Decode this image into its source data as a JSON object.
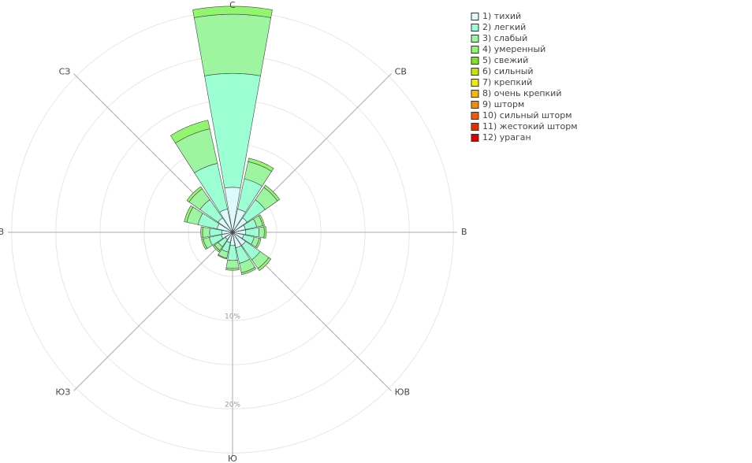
{
  "chart_data": {
    "type": "barpolar",
    "categories": [
      "С",
      null,
      "СВ",
      null,
      "В",
      null,
      "ЮВ",
      null,
      "Ю",
      null,
      "ЮЗ",
      null,
      "З",
      null,
      "СЗ",
      null
    ],
    "rlim": [
      0,
      25.6
    ],
    "rticks": [
      {
        "value": 5,
        "label": null
      },
      {
        "value": 10,
        "label": "10%"
      },
      {
        "value": 15,
        "label": null
      },
      {
        "value": 20,
        "label": "20%"
      },
      {
        "value": 25,
        "label": null
      }
    ],
    "grid": true,
    "legend": "top-right",
    "series": [
      {
        "name": "1) тихий",
        "color": "#dcfafa",
        "values": [
          5.1,
          2.7,
          2.0,
          1.5,
          1.5,
          1.3,
          1.8,
          1.8,
          1.5,
          1.2,
          1.0,
          1.3,
          1.2,
          1.8,
          2.0,
          2.7
        ]
      },
      {
        "name": "2) легкий",
        "color": "#9cffd4",
        "values": [
          12.9,
          3.5,
          2.5,
          1.3,
          1.5,
          1.2,
          2.0,
          1.8,
          1.7,
          1.1,
          1.0,
          1.4,
          1.4,
          2.2,
          2.5,
          5.3
        ]
      },
      {
        "name": "3) слабый",
        "color": "#9ef5a0",
        "values": [
          6.7,
          2.0,
          1.7,
          0.7,
          0.6,
          0.6,
          1.2,
          1.1,
          0.9,
          0.7,
          0.5,
          0.7,
          0.8,
          1.3,
          1.5,
          4.0
        ]
      },
      {
        "name": "4) умеренный",
        "color": "#92f56e",
        "values": [
          0.9,
          0.4,
          0.3,
          0.2,
          0.2,
          0.2,
          0.3,
          0.2,
          0.2,
          0.1,
          0.2,
          0.2,
          0.2,
          0.3,
          0.3,
          1.0
        ]
      },
      {
        "name": "5) свежий",
        "color": "#7de61e",
        "values": [
          0,
          0,
          0,
          0,
          0,
          0,
          0,
          0,
          0,
          0,
          0,
          0,
          0,
          0,
          0,
          0
        ]
      },
      {
        "name": "6) сильный",
        "color": "#c8e600",
        "values": [
          0,
          0,
          0,
          0,
          0,
          0,
          0,
          0,
          0,
          0,
          0,
          0,
          0,
          0,
          0,
          0
        ]
      },
      {
        "name": "7) крепкий",
        "color": "#f5eb00",
        "values": [
          0,
          0,
          0,
          0,
          0,
          0,
          0,
          0,
          0,
          0,
          0,
          0,
          0,
          0,
          0,
          0
        ]
      },
      {
        "name": "8) очень крепкий",
        "color": "#f5b900",
        "values": [
          0,
          0,
          0,
          0,
          0,
          0,
          0,
          0,
          0,
          0,
          0,
          0,
          0,
          0,
          0,
          0
        ]
      },
      {
        "name": "9) шторм",
        "color": "#f58c00",
        "values": [
          0,
          0,
          0,
          0,
          0,
          0,
          0,
          0,
          0,
          0,
          0,
          0,
          0,
          0,
          0,
          0
        ]
      },
      {
        "name": "10) сильный шторм",
        "color": "#f05a00",
        "values": [
          0,
          0,
          0,
          0,
          0,
          0,
          0,
          0,
          0,
          0,
          0,
          0,
          0,
          0,
          0,
          0
        ]
      },
      {
        "name": "11) жестокий шторм",
        "color": "#eb2d00",
        "values": [
          0,
          0,
          0,
          0,
          0,
          0,
          0,
          0,
          0,
          0,
          0,
          0,
          0,
          0,
          0,
          0
        ]
      },
      {
        "name": "12) ураган",
        "color": "#dc0000",
        "values": [
          0,
          0,
          0,
          0,
          0,
          0,
          0,
          0,
          0,
          0,
          0,
          0,
          0,
          0,
          0,
          0
        ]
      }
    ]
  }
}
